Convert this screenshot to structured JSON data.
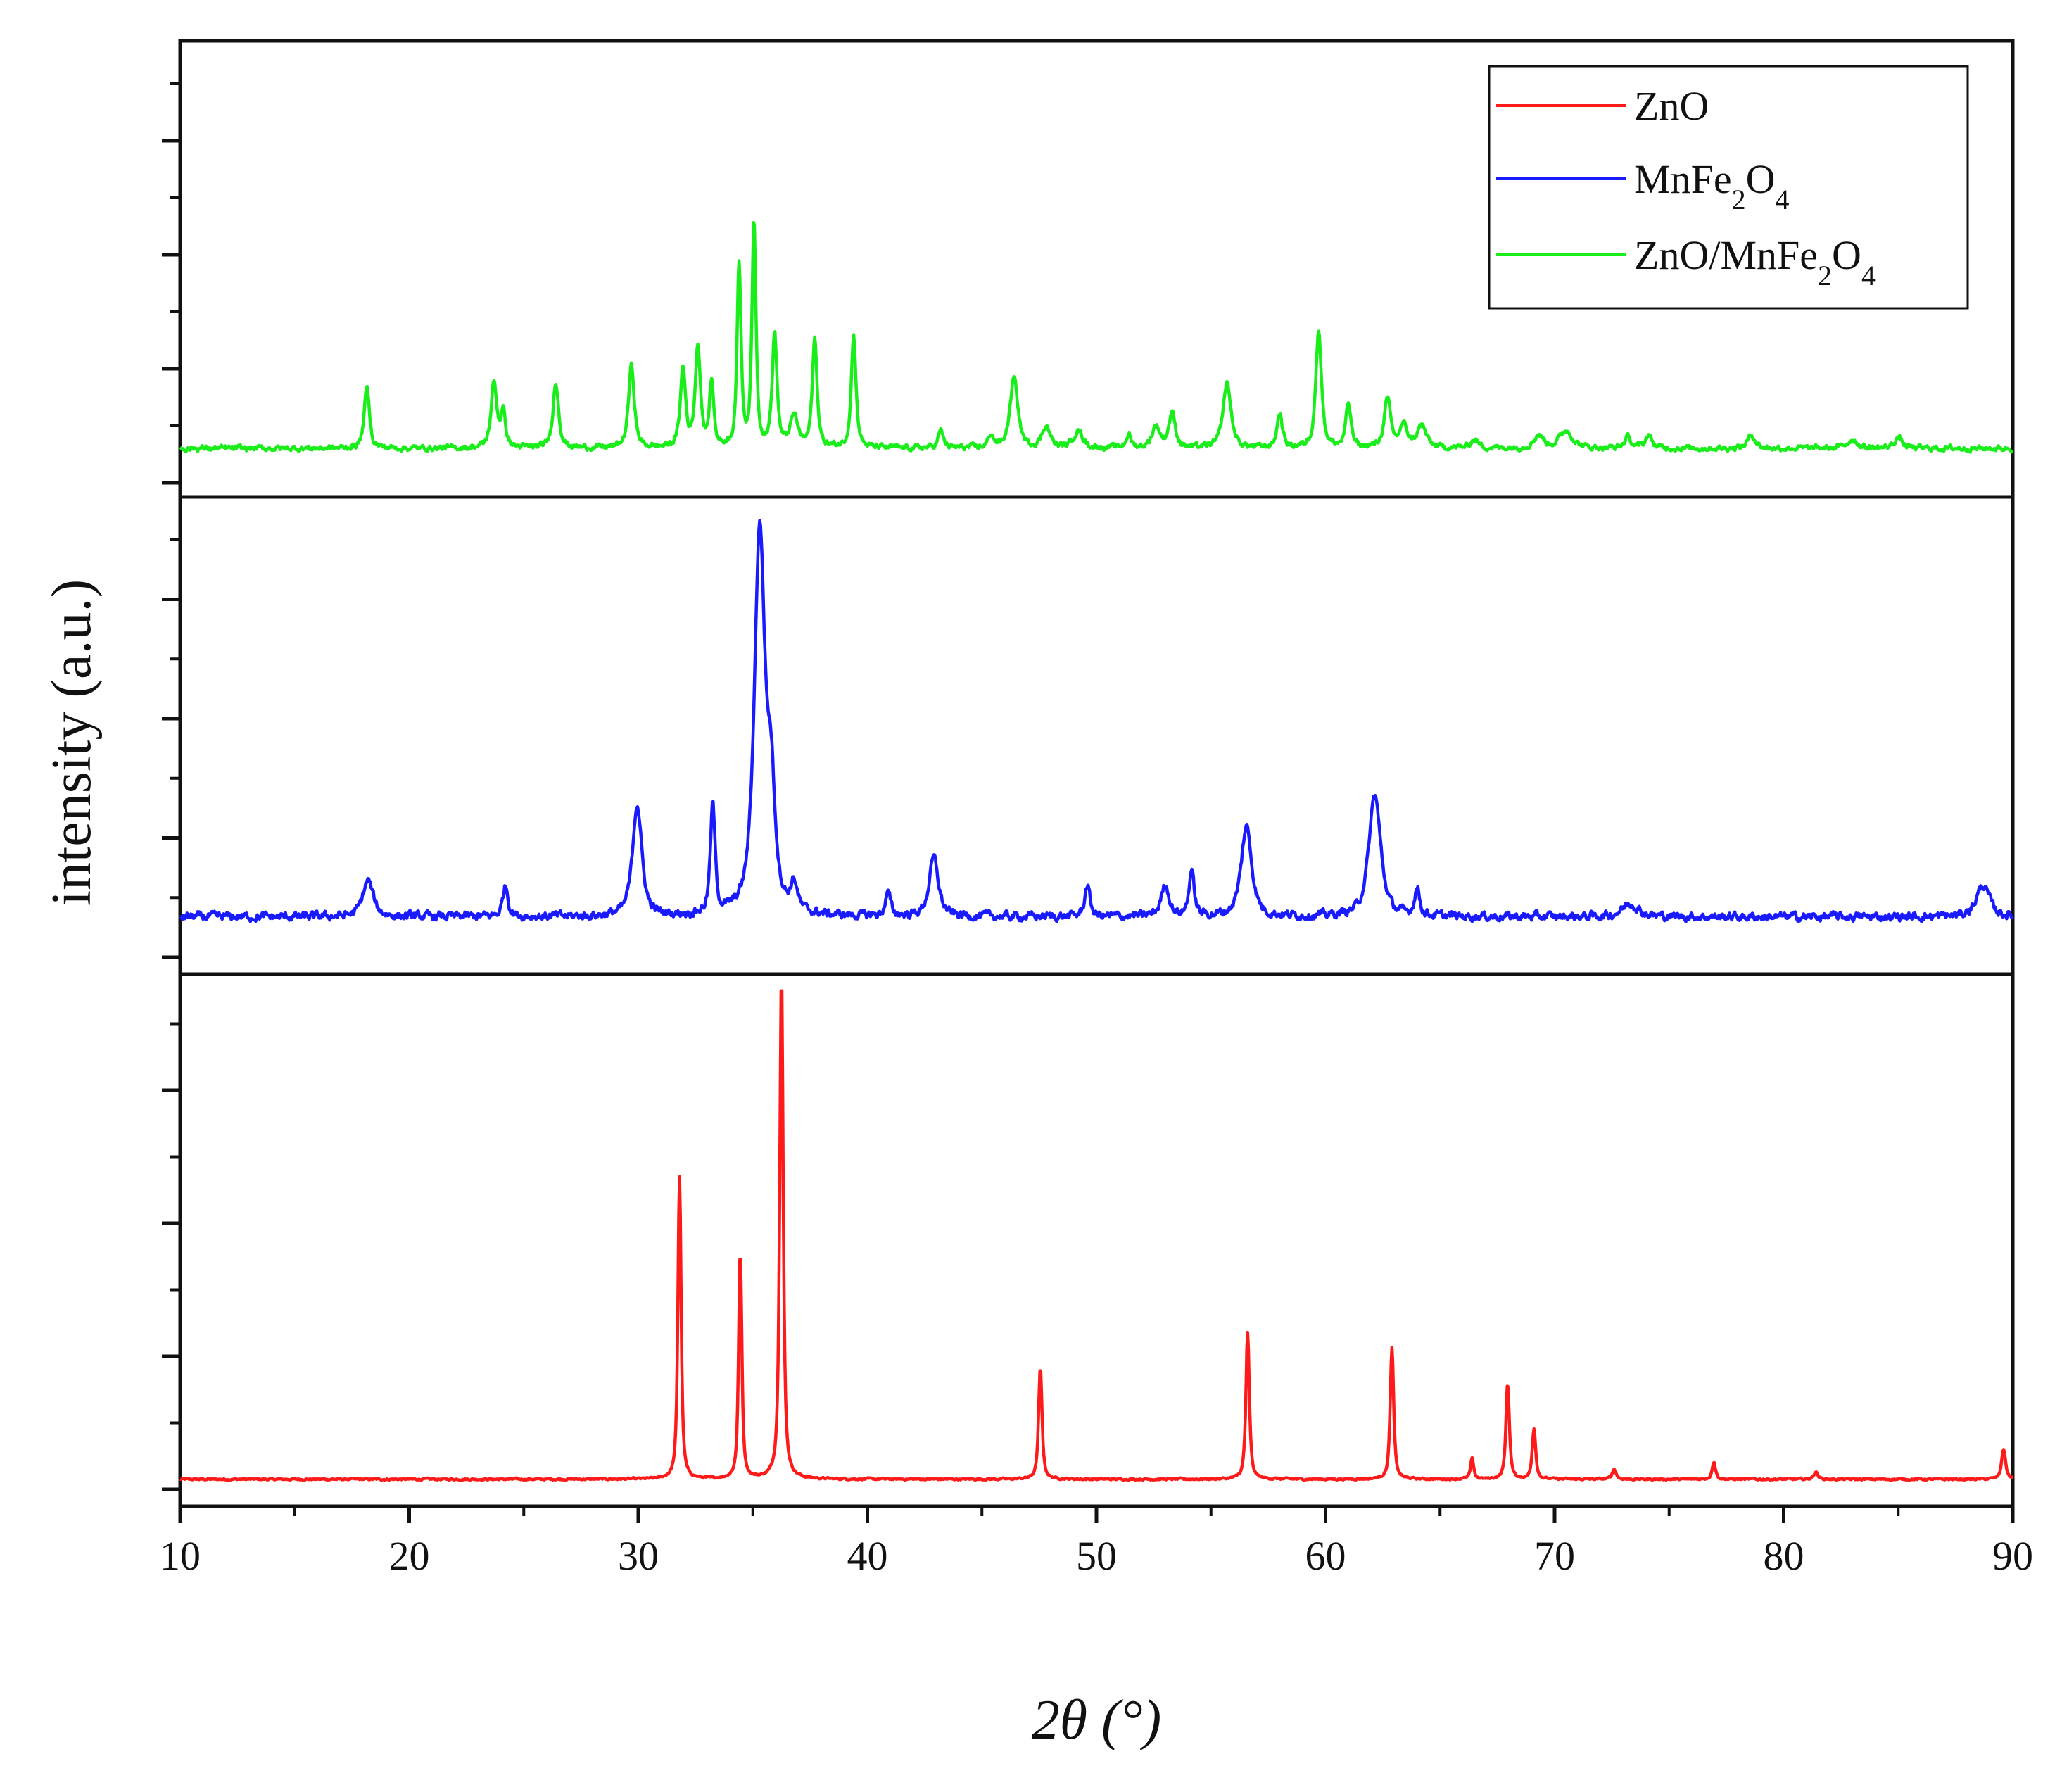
{
  "chart_data": {
    "type": "line",
    "layout": "stacked-panels",
    "xlabel": "2θ (°)",
    "ylabel": "intensity (a.u.)",
    "xlim": [
      10,
      90
    ],
    "x_ticks": [
      10,
      20,
      30,
      40,
      50,
      60,
      70,
      80,
      90
    ],
    "y_tick_labels_shown": false,
    "legend": {
      "position": "top-right",
      "entries": [
        {
          "label": "ZnO",
          "color": "#ff1a1a"
        },
        {
          "label": "MnFe2O4",
          "color": "#1a1aff"
        },
        {
          "label": "ZnO/MnFe2O4",
          "color": "#1aee1a"
        }
      ]
    },
    "series": [
      {
        "name": "ZnO",
        "panel": "bottom",
        "color": "#ff1a1a",
        "baseline": 2,
        "ylim": [
          0,
          100
        ],
        "noise": 0.3,
        "peaks": [
          {
            "x": 31.8,
            "height": 60,
            "width": 0.12
          },
          {
            "x": 34.45,
            "height": 45,
            "width": 0.12
          },
          {
            "x": 36.25,
            "height": 100,
            "width": 0.13
          },
          {
            "x": 47.55,
            "height": 22,
            "width": 0.13
          },
          {
            "x": 56.6,
            "height": 29,
            "width": 0.13
          },
          {
            "x": 62.9,
            "height": 26,
            "width": 0.13
          },
          {
            "x": 66.4,
            "height": 4,
            "width": 0.12
          },
          {
            "x": 67.95,
            "height": 19,
            "width": 0.13
          },
          {
            "x": 69.1,
            "height": 10,
            "width": 0.13
          },
          {
            "x": 72.6,
            "height": 2,
            "width": 0.15
          },
          {
            "x": 76.95,
            "height": 3.5,
            "width": 0.13
          },
          {
            "x": 81.4,
            "height": 1.5,
            "width": 0.15
          },
          {
            "x": 89.6,
            "height": 6,
            "width": 0.15
          }
        ]
      },
      {
        "name": "MnFe2O4",
        "panel": "middle",
        "color": "#1a1aff",
        "baseline": 9,
        "ylim": [
          0,
          100
        ],
        "noise": 1.6,
        "peaks": [
          {
            "x": 18.2,
            "height": 8,
            "width": 0.4
          },
          {
            "x": 24.2,
            "height": 7,
            "width": 0.2
          },
          {
            "x": 29.95,
            "height": 25,
            "width": 0.35
          },
          {
            "x": 33.25,
            "height": 24,
            "width": 0.18
          },
          {
            "x": 35.3,
            "height": 85,
            "width": 0.4
          },
          {
            "x": 35.8,
            "height": 24,
            "width": 0.3
          },
          {
            "x": 36.8,
            "height": 6,
            "width": 0.25
          },
          {
            "x": 40.9,
            "height": 5,
            "width": 0.2
          },
          {
            "x": 42.9,
            "height": 13,
            "width": 0.35
          },
          {
            "x": 49.6,
            "height": 7,
            "width": 0.2
          },
          {
            "x": 53.0,
            "height": 7,
            "width": 0.3
          },
          {
            "x": 54.15,
            "height": 10,
            "width": 0.2
          },
          {
            "x": 56.55,
            "height": 20,
            "width": 0.4
          },
          {
            "x": 62.15,
            "height": 27,
            "width": 0.45
          },
          {
            "x": 64.0,
            "height": 6,
            "width": 0.2
          },
          {
            "x": 73.3,
            "height": 3,
            "width": 0.6
          },
          {
            "x": 88.7,
            "height": 7,
            "width": 0.5
          }
        ]
      },
      {
        "name": "ZnO/MnFe2O4",
        "panel": "top",
        "color": "#1aee1a",
        "baseline": 8,
        "ylim": [
          0,
          100
        ],
        "noise": 1.1,
        "peaks": [
          {
            "x": 18.15,
            "height": 14,
            "width": 0.2
          },
          {
            "x": 23.7,
            "height": 15,
            "width": 0.22
          },
          {
            "x": 24.1,
            "height": 8,
            "width": 0.18
          },
          {
            "x": 26.4,
            "height": 15,
            "width": 0.22
          },
          {
            "x": 29.7,
            "height": 19,
            "width": 0.22
          },
          {
            "x": 31.95,
            "height": 18,
            "width": 0.2
          },
          {
            "x": 32.6,
            "height": 23,
            "width": 0.2
          },
          {
            "x": 33.2,
            "height": 15,
            "width": 0.16
          },
          {
            "x": 34.4,
            "height": 42,
            "width": 0.15
          },
          {
            "x": 35.05,
            "height": 52,
            "width": 0.15
          },
          {
            "x": 35.95,
            "height": 26,
            "width": 0.18
          },
          {
            "x": 36.8,
            "height": 7,
            "width": 0.3
          },
          {
            "x": 37.7,
            "height": 25,
            "width": 0.18
          },
          {
            "x": 39.4,
            "height": 26,
            "width": 0.18
          },
          {
            "x": 43.2,
            "height": 4,
            "width": 0.2
          },
          {
            "x": 45.4,
            "height": 3,
            "width": 0.2
          },
          {
            "x": 46.4,
            "height": 16,
            "width": 0.3
          },
          {
            "x": 47.8,
            "height": 5,
            "width": 0.3
          },
          {
            "x": 49.2,
            "height": 4,
            "width": 0.35
          },
          {
            "x": 51.4,
            "height": 3,
            "width": 0.2
          },
          {
            "x": 52.6,
            "height": 5,
            "width": 0.3
          },
          {
            "x": 53.3,
            "height": 8,
            "width": 0.25
          },
          {
            "x": 55.7,
            "height": 15,
            "width": 0.3
          },
          {
            "x": 58.0,
            "height": 8,
            "width": 0.2
          },
          {
            "x": 59.7,
            "height": 27,
            "width": 0.22
          },
          {
            "x": 61.0,
            "height": 10,
            "width": 0.2
          },
          {
            "x": 62.7,
            "height": 11,
            "width": 0.25
          },
          {
            "x": 63.4,
            "height": 5,
            "width": 0.3
          },
          {
            "x": 64.2,
            "height": 5,
            "width": 0.35
          },
          {
            "x": 66.5,
            "height": 2,
            "width": 0.3
          },
          {
            "x": 69.3,
            "height": 3,
            "width": 0.35
          },
          {
            "x": 70.5,
            "height": 4,
            "width": 0.5
          },
          {
            "x": 73.2,
            "height": 2.5,
            "width": 0.25
          },
          {
            "x": 74.1,
            "height": 3,
            "width": 0.25
          },
          {
            "x": 78.6,
            "height": 3,
            "width": 0.3
          },
          {
            "x": 83.0,
            "height": 2,
            "width": 0.4
          },
          {
            "x": 85.0,
            "height": 2.5,
            "width": 0.3
          }
        ]
      }
    ]
  }
}
